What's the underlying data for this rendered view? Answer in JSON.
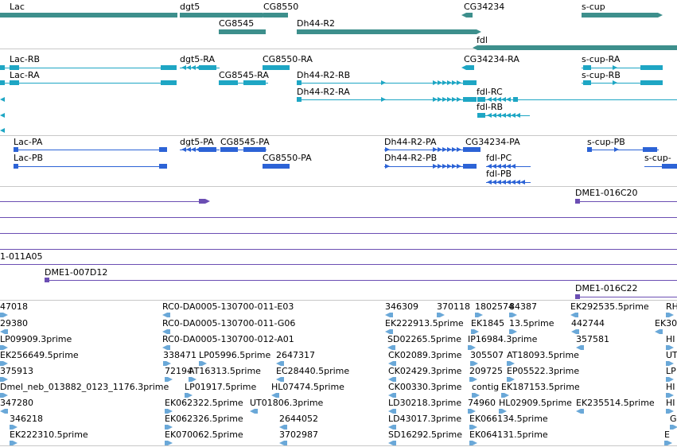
{
  "colors": {
    "gene": "#3d8f8c",
    "transcript": "#1ea6c4",
    "protein": "#2c63d6",
    "clone": "#6b4eb3",
    "est": "#6aa8d8",
    "separator": "#c8c8c8"
  },
  "tracks": {
    "genes": {
      "labels": [
        "Lac",
        "dgt5",
        "CG8550",
        "CG34234",
        "s-cup",
        "CG8545",
        "Dh44-R2",
        "fdl"
      ]
    },
    "transcripts": {
      "labels": [
        "Lac-RB",
        "dgt5-RA",
        "CG8550-RA",
        "CG34234-RA",
        "s-cup-RA",
        "Lac-RA",
        "CG8545-RA",
        "Dh44-R2-RB",
        "s-cup-RB",
        "Dh44-R2-RA",
        "fdl-RC",
        "fdl-RB"
      ]
    },
    "proteins": {
      "labels": [
        "Lac-PA",
        "dgt5-PA",
        "CG8545-PA",
        "Dh44-R2-PA",
        "CG34234-PA",
        "s-cup-PB",
        "Lac-PB",
        "CG8550-PA",
        "Dh44-R2-PB",
        "s-cup-",
        "fdl-PC",
        "fdl-PB"
      ]
    },
    "clones": {
      "labels": [
        "DME1-016C20",
        "1-011A05",
        "DME1-007D12",
        "DME1-016C22"
      ]
    },
    "ests": {
      "labels": [
        "47018",
        "RC0-DA0005-130700-011-E03",
        "346309",
        "370118",
        "1802574",
        "84387",
        "EK292535.5prime",
        "RH",
        "29380",
        "RC0-DA0005-130700-011-G06",
        "EK222913.5prime",
        "EK1845",
        "13.5prime",
        "442744",
        "EK30",
        "LP09909.3prime",
        "RC0-DA0005-130700-012-A01",
        "SD02265.5prime",
        "IP16984.3prime",
        "357581",
        "HI",
        "EK256649.5prime",
        "338471",
        "LP05996.5prime",
        "2647317",
        "CK02089.3prime",
        "305507",
        "AT18093.5prime",
        "UT",
        "375913",
        "72194",
        "AT16313.5prime",
        "EC28440.5prime",
        "CK02429.3prime",
        "209725",
        "EP05522.3prime",
        "LP",
        "Dmel_neb_013882_0123_1176.3prime",
        "LP01917.5prime",
        "HL07474.5prime",
        "CK00330.3prime",
        "contig",
        "EK187153.5prime",
        "HI",
        "347280",
        "EK062322.5prime",
        "UT01806.3prime",
        "LD30218.3prime",
        "74960",
        "HL02909.5prime",
        "EK235514.5prime",
        "HI",
        "346218",
        "EK062326.5prime",
        "2644052",
        "LD43017.3prime",
        "EK066134.5prime",
        "G",
        "EK222310.5prime",
        "EK070062.5prime",
        "3702987",
        "SD16292.5prime",
        "EK064131.5prime",
        "E"
      ]
    }
  }
}
